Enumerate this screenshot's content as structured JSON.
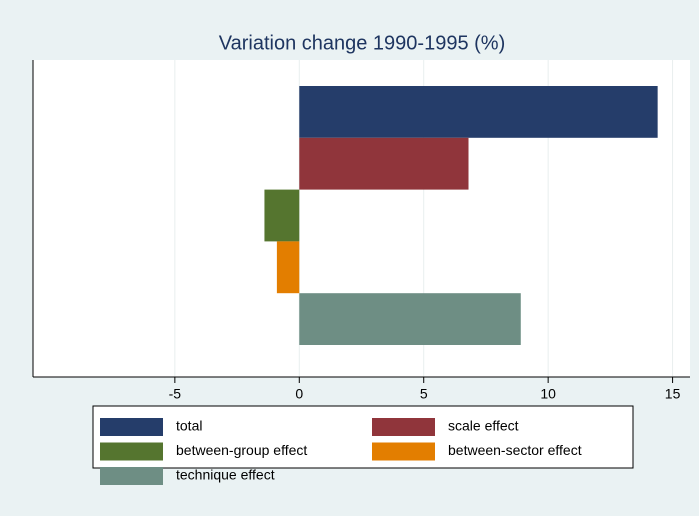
{
  "chart_data": {
    "type": "bar",
    "orientation": "horizontal",
    "title": "Variation change 1990-1995 (%)",
    "series": [
      {
        "name": "total",
        "color": "#253d6a",
        "values": [
          14.4
        ]
      },
      {
        "name": "scale effect",
        "color": "#90353b",
        "values": [
          6.8
        ]
      },
      {
        "name": "between-group effect",
        "color": "#55752f",
        "values": [
          -1.4
        ]
      },
      {
        "name": "between-sector effect",
        "color": "#e37e00",
        "values": [
          -0.9
        ]
      },
      {
        "name": "technique effect",
        "color": "#6e8e84",
        "values": [
          8.9
        ]
      }
    ],
    "xlim": [
      -10.7,
      15.7
    ],
    "xticks": [
      -5,
      0,
      5,
      10,
      15
    ],
    "grid": true
  }
}
